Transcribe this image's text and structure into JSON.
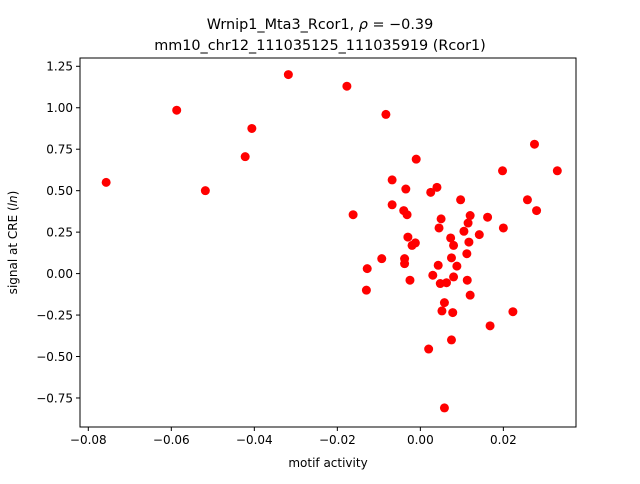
{
  "chart_data": {
    "type": "scatter",
    "title_line1_prefix": "Wrnip1_Mta3_Rcor1, ",
    "title_rho_symbol": "ρ",
    "title_rho_value": " = −0.39",
    "title_line2": "mm10_chr12_111035125_111035919 (Rcor1)",
    "xlabel": "motif activity",
    "ylabel_prefix": "signal at CRE (",
    "ylabel_italic": "ln",
    "ylabel_suffix": ")",
    "xlim": [
      -0.082,
      0.0375
    ],
    "ylim": [
      -0.925,
      1.3
    ],
    "xticks": [
      -0.08,
      -0.06,
      -0.04,
      -0.02,
      0.0,
      0.02
    ],
    "xtick_labels": [
      "−0.08",
      "−0.06",
      "−0.04",
      "−0.02",
      "0.00",
      "0.02"
    ],
    "yticks": [
      -0.75,
      -0.5,
      -0.25,
      0.0,
      0.25,
      0.5,
      0.75,
      1.0,
      1.25
    ],
    "ytick_labels": [
      "−0.75",
      "−0.50",
      "−0.25",
      "0.00",
      "0.25",
      "0.50",
      "0.75",
      "1.00",
      "1.25"
    ],
    "grid": false,
    "marker_color": "#ff0000",
    "points": [
      {
        "x": -0.0757,
        "y": 0.55
      },
      {
        "x": -0.0587,
        "y": 0.985
      },
      {
        "x": -0.0518,
        "y": 0.5
      },
      {
        "x": -0.0406,
        "y": 0.875
      },
      {
        "x": -0.0422,
        "y": 0.705
      },
      {
        "x": -0.0318,
        "y": 1.2
      },
      {
        "x": -0.0177,
        "y": 1.13
      },
      {
        "x": -0.0162,
        "y": 0.355
      },
      {
        "x": -0.0128,
        "y": 0.03
      },
      {
        "x": -0.013,
        "y": -0.1
      },
      {
        "x": -0.0093,
        "y": 0.09
      },
      {
        "x": -0.0083,
        "y": 0.96
      },
      {
        "x": -0.0068,
        "y": 0.565
      },
      {
        "x": -0.0068,
        "y": 0.415
      },
      {
        "x": -0.004,
        "y": 0.38
      },
      {
        "x": -0.0035,
        "y": 0.51
      },
      {
        "x": -0.0032,
        "y": 0.355
      },
      {
        "x": -0.0038,
        "y": 0.09
      },
      {
        "x": -0.0038,
        "y": 0.06
      },
      {
        "x": -0.003,
        "y": 0.22
      },
      {
        "x": -0.0025,
        "y": -0.04
      },
      {
        "x": -0.002,
        "y": 0.17
      },
      {
        "x": -0.0012,
        "y": 0.185
      },
      {
        "x": -0.001,
        "y": 0.69
      },
      {
        "x": 0.002,
        "y": -0.455
      },
      {
        "x": 0.0025,
        "y": 0.49
      },
      {
        "x": 0.003,
        "y": -0.01
      },
      {
        "x": 0.004,
        "y": 0.52
      },
      {
        "x": 0.0043,
        "y": 0.05
      },
      {
        "x": 0.0045,
        "y": 0.275
      },
      {
        "x": 0.0048,
        "y": -0.06
      },
      {
        "x": 0.005,
        "y": 0.33
      },
      {
        "x": 0.0052,
        "y": -0.225
      },
      {
        "x": 0.0058,
        "y": -0.175
      },
      {
        "x": 0.0058,
        "y": -0.81
      },
      {
        "x": 0.0063,
        "y": -0.055
      },
      {
        "x": 0.0073,
        "y": 0.215
      },
      {
        "x": 0.0075,
        "y": -0.4
      },
      {
        "x": 0.0075,
        "y": 0.095
      },
      {
        "x": 0.0078,
        "y": -0.235
      },
      {
        "x": 0.008,
        "y": 0.17
      },
      {
        "x": 0.008,
        "y": -0.02
      },
      {
        "x": 0.0088,
        "y": 0.045
      },
      {
        "x": 0.0097,
        "y": 0.445
      },
      {
        "x": 0.0105,
        "y": 0.255
      },
      {
        "x": 0.0112,
        "y": 0.12
      },
      {
        "x": 0.0113,
        "y": -0.04
      },
      {
        "x": 0.0115,
        "y": 0.305
      },
      {
        "x": 0.0117,
        "y": 0.19
      },
      {
        "x": 0.012,
        "y": 0.35
      },
      {
        "x": 0.012,
        "y": -0.13
      },
      {
        "x": 0.0142,
        "y": 0.235
      },
      {
        "x": 0.0162,
        "y": 0.34
      },
      {
        "x": 0.0168,
        "y": -0.315
      },
      {
        "x": 0.0198,
        "y": 0.62
      },
      {
        "x": 0.02,
        "y": 0.275
      },
      {
        "x": 0.0223,
        "y": -0.23
      },
      {
        "x": 0.0258,
        "y": 0.445
      },
      {
        "x": 0.0275,
        "y": 0.78
      },
      {
        "x": 0.028,
        "y": 0.38
      },
      {
        "x": 0.033,
        "y": 0.62
      }
    ]
  }
}
